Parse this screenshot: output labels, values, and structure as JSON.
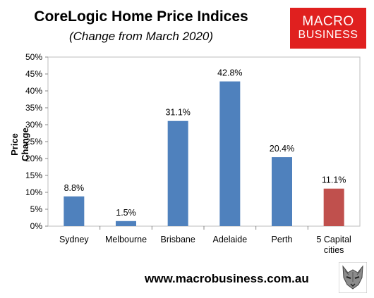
{
  "header": {
    "title": "CoreLogic Home Price Indices",
    "subtitle": "(Change from March 2020)"
  },
  "logo": {
    "line1": "MACRO",
    "line2": "BUSINESS"
  },
  "footer": {
    "site": "www.macrobusiness.com.au",
    "icon": "wolf-icon"
  },
  "chart_data": {
    "type": "bar",
    "ylabel": "Price Change",
    "ylim": [
      0,
      50
    ],
    "yticks": [
      "0%",
      "5%",
      "10%",
      "15%",
      "20%",
      "25%",
      "30%",
      "35%",
      "40%",
      "45%",
      "50%"
    ],
    "categories": [
      [
        "Sydney"
      ],
      [
        "Melbourne"
      ],
      [
        "Brisbane"
      ],
      [
        "Adelaide"
      ],
      [
        "Perth"
      ],
      [
        "5 Capital",
        "cities"
      ]
    ],
    "values": [
      8.8,
      1.5,
      31.1,
      42.8,
      20.4,
      11.1
    ],
    "data_labels": [
      "8.8%",
      "1.5%",
      "31.1%",
      "42.8%",
      "20.4%",
      "11.1%"
    ],
    "colors": [
      "#4f81bd",
      "#4f81bd",
      "#4f81bd",
      "#4f81bd",
      "#4f81bd",
      "#c0504d"
    ],
    "grid": false,
    "legend": "none"
  }
}
